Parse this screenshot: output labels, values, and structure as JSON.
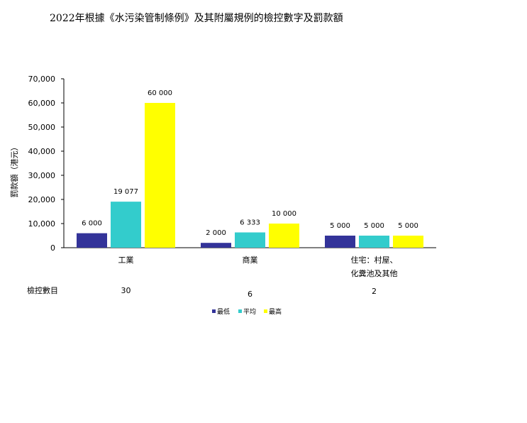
{
  "chart_data": {
    "type": "bar",
    "title": "2022年根據《水污染管制條例》及其附屬規例的檢控數字及罰款額",
    "ylabel": "罰款額（港元）",
    "ylim": [
      0,
      70000
    ],
    "yticks": [
      0,
      10000,
      20000,
      30000,
      40000,
      50000,
      60000,
      70000
    ],
    "ytick_labels": [
      "0",
      "10,000",
      "20,000",
      "30,000",
      "40,000",
      "50,000",
      "60,000",
      "70,000"
    ],
    "categories": [
      [
        "工業"
      ],
      [
        "商業"
      ],
      [
        "住宅：村屋、",
        "化糞池及其他"
      ]
    ],
    "series": [
      {
        "name": "最低",
        "values": [
          6000,
          2000,
          5000
        ],
        "labels": [
          "6 000",
          "2 000",
          "5 000"
        ],
        "color": "#333399"
      },
      {
        "name": "平均",
        "values": [
          19077,
          6333,
          5000
        ],
        "labels": [
          "19 077",
          "6 333",
          "5 000"
        ],
        "color": "#33CCCC"
      },
      {
        "name": "最高",
        "values": [
          60000,
          10000,
          5000
        ],
        "labels": [
          "60 000",
          "10 000",
          "5 000"
        ],
        "color": "#FFFF00"
      }
    ],
    "prosecution": {
      "label": "檢控數目",
      "values": [
        "30",
        "6",
        "2"
      ]
    },
    "grid": false,
    "legend_position": "bottom"
  }
}
